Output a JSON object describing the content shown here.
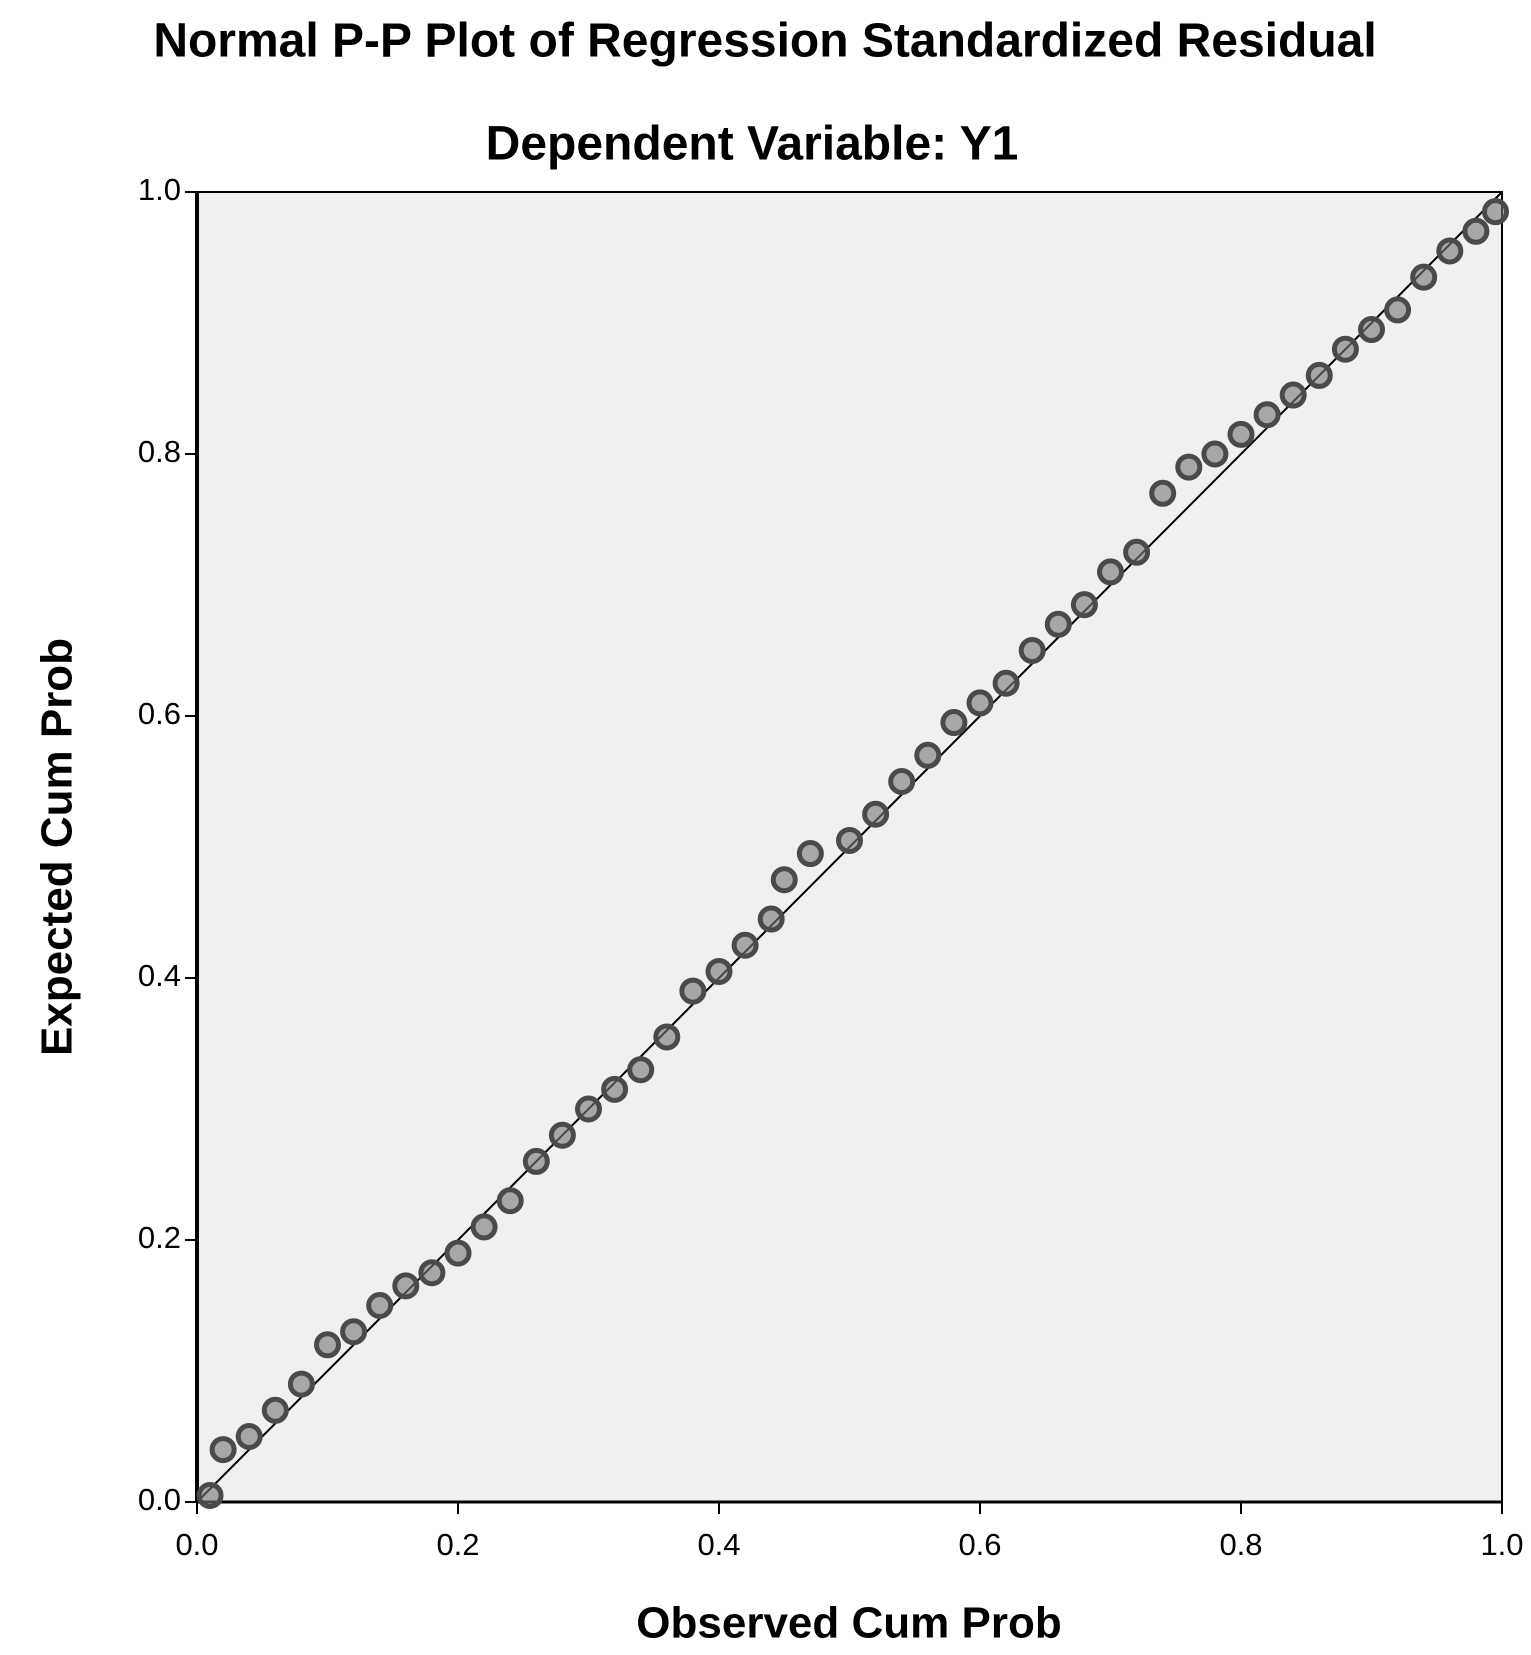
{
  "chart_data": {
    "type": "scatter",
    "title": "Normal P-P Plot of Regression Standardized Residual",
    "subtitle": "Dependent Variable: Y1",
    "x_label": "Observed Cum Prob",
    "y_label": "Expected Cum Prob",
    "x": [
      0.01,
      0.02,
      0.04,
      0.06,
      0.08,
      0.1,
      0.12,
      0.14,
      0.16,
      0.18,
      0.2,
      0.22,
      0.24,
      0.26,
      0.28,
      0.3,
      0.32,
      0.34,
      0.36,
      0.38,
      0.4,
      0.42,
      0.44,
      0.45,
      0.47,
      0.5,
      0.52,
      0.54,
      0.56,
      0.58,
      0.6,
      0.62,
      0.64,
      0.66,
      0.68,
      0.7,
      0.72,
      0.74,
      0.76,
      0.78,
      0.8,
      0.82,
      0.84,
      0.86,
      0.88,
      0.9,
      0.92,
      0.94,
      0.96,
      0.98,
      0.995
    ],
    "values": [
      0.005,
      0.04,
      0.05,
      0.07,
      0.09,
      0.12,
      0.13,
      0.15,
      0.165,
      0.175,
      0.19,
      0.21,
      0.23,
      0.26,
      0.28,
      0.3,
      0.315,
      0.33,
      0.355,
      0.39,
      0.405,
      0.425,
      0.445,
      0.475,
      0.495,
      0.505,
      0.525,
      0.55,
      0.57,
      0.595,
      0.61,
      0.625,
      0.65,
      0.67,
      0.685,
      0.71,
      0.725,
      0.77,
      0.79,
      0.8,
      0.815,
      0.83,
      0.845,
      0.86,
      0.88,
      0.895,
      0.91,
      0.935,
      0.955,
      0.97,
      0.985
    ],
    "color": "#4a4a4a",
    "xlim": [
      0,
      1
    ],
    "ylim": [
      0,
      1
    ],
    "xticks": [
      {
        "value": 0,
        "label": "0.0"
      },
      0.2,
      0.4,
      0.6,
      0.8,
      {
        "value": 1,
        "label": "1.0"
      }
    ],
    "yticks": [
      {
        "value": 0,
        "label": "0.0"
      },
      0.2,
      0.4,
      0.6,
      0.8,
      {
        "value": 1,
        "label": "1.0"
      }
    ],
    "reference_line": true
  }
}
